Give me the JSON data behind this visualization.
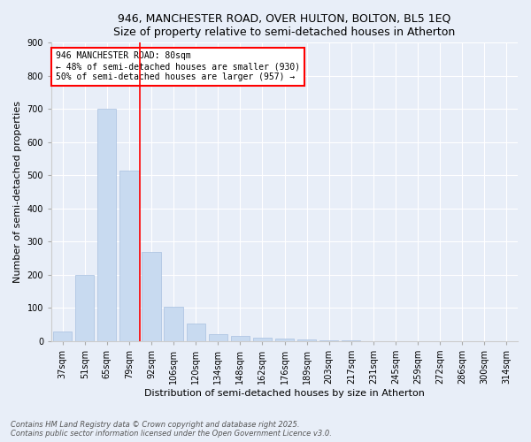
{
  "title1": "946, MANCHESTER ROAD, OVER HULTON, BOLTON, BL5 1EQ",
  "title2": "Size of property relative to semi-detached houses in Atherton",
  "xlabel": "Distribution of semi-detached houses by size in Atherton",
  "ylabel": "Number of semi-detached properties",
  "categories": [
    "37sqm",
    "51sqm",
    "65sqm",
    "79sqm",
    "92sqm",
    "106sqm",
    "120sqm",
    "134sqm",
    "148sqm",
    "162sqm",
    "176sqm",
    "189sqm",
    "203sqm",
    "217sqm",
    "231sqm",
    "245sqm",
    "259sqm",
    "272sqm",
    "286sqm",
    "300sqm",
    "314sqm"
  ],
  "values": [
    30,
    200,
    700,
    515,
    270,
    105,
    52,
    20,
    15,
    10,
    8,
    5,
    3,
    2,
    1,
    1,
    1,
    0,
    0,
    0,
    0
  ],
  "bar_color": "#c8daf0",
  "bar_edge_color": "#a8c0e0",
  "vline_color": "red",
  "annotation_title": "946 MANCHESTER ROAD: 80sqm",
  "annotation_line1": "← 48% of semi-detached houses are smaller (930)",
  "annotation_line2": "50% of semi-detached houses are larger (957) →",
  "annotation_box_color": "white",
  "annotation_box_edge": "red",
  "footer1": "Contains HM Land Registry data © Crown copyright and database right 2025.",
  "footer2": "Contains public sector information licensed under the Open Government Licence v3.0.",
  "bg_color": "#e8eef8",
  "plot_bg_color": "#e8eef8",
  "ylim": [
    0,
    900
  ],
  "yticks": [
    0,
    100,
    200,
    300,
    400,
    500,
    600,
    700,
    800,
    900
  ],
  "grid_color": "#ffffff",
  "title_fontsize": 9,
  "xlabel_fontsize": 8,
  "ylabel_fontsize": 8,
  "tick_fontsize": 7,
  "footer_fontsize": 6,
  "annot_fontsize": 7
}
